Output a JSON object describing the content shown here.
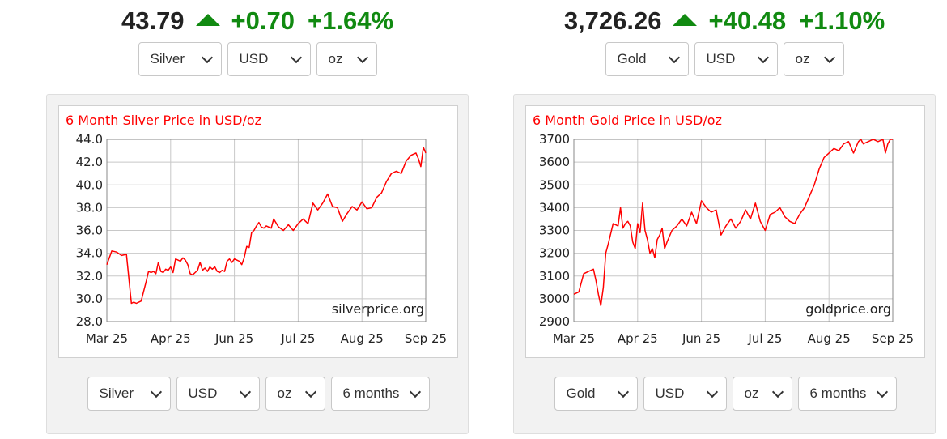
{
  "left": {
    "header": {
      "price": "43.79",
      "change": "+0.70",
      "percent": "+1.64%"
    },
    "top_selects": [
      "Silver",
      "USD",
      "oz"
    ],
    "bottom_selects": [
      "Silver",
      "USD",
      "oz",
      "6 months"
    ],
    "watermark": "silverprice.org",
    "accent": "#ff0000",
    "chart_data": {
      "type": "line",
      "title": "6 Month Silver Price in USD/oz",
      "xlabel": "",
      "ylabel": "",
      "x_tick_labels": [
        "Mar 25",
        "Apr 25",
        "Jun 25",
        "Jul 25",
        "Aug 25",
        "Sep 25"
      ],
      "y_tick_labels": [
        "44.0",
        "42.0",
        "40.0",
        "38.0",
        "36.0",
        "34.0",
        "32.0",
        "30.0",
        "28.0"
      ],
      "ylim": [
        28,
        44
      ],
      "xlim": [
        0,
        130
      ],
      "grid": true,
      "series": [
        {
          "color": "#ff0000",
          "x": [
            0,
            2,
            4,
            6,
            8,
            10,
            11,
            12,
            14,
            16,
            17,
            18,
            19,
            20,
            21,
            22,
            23,
            24,
            25,
            26,
            27,
            28,
            29,
            30,
            31,
            32,
            33,
            34,
            35,
            36,
            37,
            38,
            39,
            40,
            41,
            42,
            43,
            44,
            45,
            46,
            47,
            48,
            49,
            50,
            51,
            52,
            53,
            54,
            55,
            56,
            57,
            58,
            59,
            60,
            61,
            62,
            63,
            64,
            65,
            66,
            67,
            68,
            70,
            72,
            74,
            76,
            78,
            80,
            82,
            84,
            86,
            88,
            90,
            92,
            94,
            96,
            98,
            100,
            102,
            104,
            106,
            108,
            110,
            112,
            114,
            116,
            118,
            120,
            122,
            124,
            126,
            127,
            128,
            129,
            130
          ],
          "values": [
            33.0,
            34.2,
            34.1,
            33.8,
            33.9,
            29.6,
            29.7,
            29.6,
            29.8,
            31.5,
            32.4,
            32.3,
            32.4,
            32.2,
            33.2,
            32.4,
            32.3,
            32.6,
            32.5,
            32.8,
            32.3,
            33.5,
            33.4,
            33.3,
            33.6,
            33.4,
            33.0,
            32.2,
            32.1,
            32.3,
            32.5,
            33.2,
            32.5,
            32.7,
            32.4,
            32.8,
            32.6,
            32.8,
            32.4,
            32.3,
            32.5,
            32.4,
            33.3,
            33.5,
            33.2,
            33.5,
            33.4,
            33.3,
            33.0,
            33.6,
            34.6,
            34.5,
            35.8,
            36.0,
            36.4,
            36.7,
            36.3,
            36.2,
            36.4,
            36.3,
            36.2,
            37.0,
            36.3,
            36.0,
            36.5,
            36.0,
            36.6,
            37.0,
            36.6,
            38.4,
            37.8,
            38.4,
            39.2,
            38.1,
            38.0,
            36.8,
            37.5,
            38.1,
            37.8,
            38.5,
            37.9,
            38.0,
            38.9,
            39.3,
            40.3,
            41.0,
            41.2,
            41.0,
            42.1,
            42.6,
            42.8,
            42.3,
            41.6,
            43.3,
            42.8
          ]
        }
      ]
    }
  },
  "right": {
    "header": {
      "price": "3,726.26",
      "change": "+40.48",
      "percent": "+1.10%"
    },
    "top_selects": [
      "Gold",
      "USD",
      "oz"
    ],
    "bottom_selects": [
      "Gold",
      "USD",
      "oz",
      "6 months"
    ],
    "watermark": "goldprice.org",
    "accent": "#ff0000",
    "chart_data": {
      "type": "line",
      "title": "6 Month Gold Price in USD/oz",
      "xlabel": "",
      "ylabel": "",
      "x_tick_labels": [
        "Mar 25",
        "Apr 25",
        "Jun 25",
        "Jul 25",
        "Aug 25",
        "Sep 25"
      ],
      "y_tick_labels": [
        "3700",
        "3600",
        "3500",
        "3400",
        "3300",
        "3200",
        "3100",
        "3000",
        "2900"
      ],
      "ylim": [
        2900,
        3700
      ],
      "xlim": [
        0,
        130
      ],
      "grid": true,
      "series": [
        {
          "color": "#ff0000",
          "x": [
            0,
            2,
            4,
            6,
            8,
            9,
            10,
            11,
            12,
            13,
            14,
            16,
            18,
            19,
            20,
            21,
            22,
            23,
            24,
            25,
            26,
            27,
            28,
            29,
            30,
            31,
            32,
            33,
            34,
            35,
            36,
            37,
            38,
            40,
            42,
            44,
            46,
            48,
            50,
            52,
            54,
            56,
            58,
            60,
            62,
            64,
            66,
            68,
            70,
            72,
            74,
            76,
            78,
            80,
            82,
            84,
            86,
            88,
            90,
            92,
            94,
            96,
            98,
            100,
            102,
            104,
            106,
            108,
            110,
            112,
            114,
            116,
            117,
            118,
            120,
            122,
            124,
            126,
            127,
            128,
            129,
            130
          ],
          "values": [
            3020,
            3030,
            3110,
            3120,
            3130,
            3080,
            3020,
            2970,
            3050,
            3200,
            3240,
            3330,
            3320,
            3400,
            3310,
            3330,
            3340,
            3320,
            3250,
            3220,
            3330,
            3290,
            3420,
            3300,
            3260,
            3200,
            3220,
            3180,
            3260,
            3280,
            3310,
            3220,
            3250,
            3300,
            3320,
            3350,
            3320,
            3380,
            3330,
            3430,
            3400,
            3380,
            3390,
            3280,
            3320,
            3350,
            3310,
            3340,
            3390,
            3350,
            3420,
            3340,
            3300,
            3370,
            3380,
            3400,
            3360,
            3340,
            3330,
            3370,
            3400,
            3450,
            3500,
            3570,
            3620,
            3640,
            3660,
            3650,
            3680,
            3690,
            3640,
            3690,
            3700,
            3680,
            3690,
            3700,
            3690,
            3700,
            3640,
            3680,
            3700,
            3700
          ]
        }
      ]
    }
  }
}
